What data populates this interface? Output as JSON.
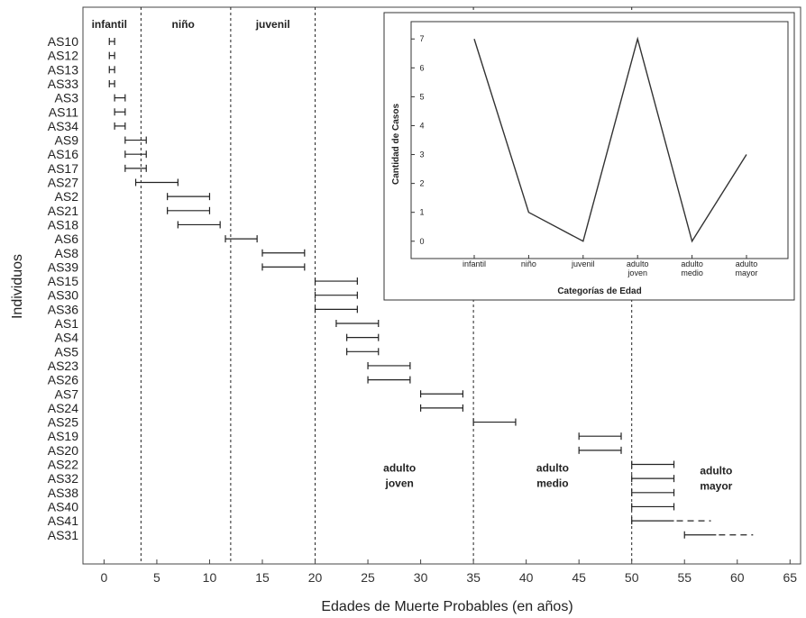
{
  "chart_data": [
    {
      "type": "interval",
      "xlabel": "Edades de Muerte Probables (en años)",
      "ylabel": "Individuos",
      "xlim": [
        -2,
        66
      ],
      "xticks": [
        0,
        5,
        10,
        15,
        20,
        25,
        30,
        35,
        40,
        45,
        50,
        55,
        60,
        65
      ],
      "dividers": [
        3.5,
        12,
        20,
        35,
        50
      ],
      "category_labels": [
        {
          "text": "infantil",
          "x": 0.5,
          "row": 0
        },
        {
          "text": "niño",
          "x": 7.5,
          "row": 0
        },
        {
          "text": "juvenil",
          "x": 16,
          "row": 0
        },
        {
          "text": "adulto\njoven",
          "x": 28,
          "row": 30.5
        },
        {
          "text": "adulto\nmedio",
          "x": 42.5,
          "row": 30.5
        },
        {
          "text": "adulto\nmayor",
          "x": 58,
          "row": 30.7
        }
      ],
      "individuals": [
        {
          "name": "AS10",
          "min": 0.5,
          "max": 1
        },
        {
          "name": "AS12",
          "min": 0.5,
          "max": 1
        },
        {
          "name": "AS13",
          "min": 0.5,
          "max": 1
        },
        {
          "name": "AS33",
          "min": 0.5,
          "max": 1
        },
        {
          "name": "AS3",
          "min": 1,
          "max": 2
        },
        {
          "name": "AS11",
          "min": 1,
          "max": 2
        },
        {
          "name": "AS34",
          "min": 1,
          "max": 2
        },
        {
          "name": "AS9",
          "min": 2,
          "max": 4
        },
        {
          "name": "AS16",
          "min": 2,
          "max": 4
        },
        {
          "name": "AS17",
          "min": 2,
          "max": 4
        },
        {
          "name": "AS27",
          "min": 3,
          "max": 7
        },
        {
          "name": "AS2",
          "min": 6,
          "max": 10
        },
        {
          "name": "AS21",
          "min": 6,
          "max": 10
        },
        {
          "name": "AS18",
          "min": 7,
          "max": 11
        },
        {
          "name": "AS6",
          "min": 11.5,
          "max": 14.5
        },
        {
          "name": "AS8",
          "min": 15,
          "max": 19
        },
        {
          "name": "AS39",
          "min": 15,
          "max": 19
        },
        {
          "name": "AS15",
          "min": 20,
          "max": 24
        },
        {
          "name": "AS30",
          "min": 20,
          "max": 24
        },
        {
          "name": "AS36",
          "min": 20,
          "max": 24
        },
        {
          "name": "AS1",
          "min": 22,
          "max": 26
        },
        {
          "name": "AS4",
          "min": 23,
          "max": 26
        },
        {
          "name": "AS5",
          "min": 23,
          "max": 26
        },
        {
          "name": "AS23",
          "min": 25,
          "max": 29
        },
        {
          "name": "AS26",
          "min": 25,
          "max": 29
        },
        {
          "name": "AS7",
          "min": 30,
          "max": 34
        },
        {
          "name": "AS24",
          "min": 30,
          "max": 34
        },
        {
          "name": "AS25",
          "min": 35,
          "max": 39
        },
        {
          "name": "AS19",
          "min": 45,
          "max": 49
        },
        {
          "name": "AS20",
          "min": 45,
          "max": 49
        },
        {
          "name": "AS22",
          "min": 50,
          "max": 54
        },
        {
          "name": "AS32",
          "min": 50,
          "max": 54
        },
        {
          "name": "AS38",
          "min": 50,
          "max": 54
        },
        {
          "name": "AS40",
          "min": 50,
          "max": 54
        },
        {
          "name": "AS41",
          "min": 50,
          "max": 54,
          "open_to": 57.5
        },
        {
          "name": "AS31",
          "min": 55,
          "max": 58,
          "open_to": 61.5
        }
      ]
    },
    {
      "type": "line",
      "xlabel": "Categorías de Edad",
      "ylabel": "Cantidad de Casos",
      "ylim": [
        -0.6,
        7.6
      ],
      "yticks": [
        0,
        1,
        2,
        3,
        4,
        5,
        6,
        7
      ],
      "categories": [
        "infantil",
        "niño",
        "juvenil",
        "adulto\njoven",
        "adulto\nmedio",
        "adulto\nmayor"
      ],
      "values": [
        7,
        1,
        0,
        7,
        0,
        3
      ]
    }
  ]
}
